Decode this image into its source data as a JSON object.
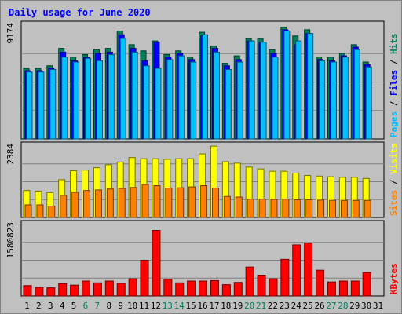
{
  "title": "Daily usage for June 2020",
  "colors": {
    "background": "#c0c0c0",
    "title": "#0000ff",
    "hits": "#00805c",
    "files": "#0000ff",
    "pages": "#00c0ff",
    "visits": "#ffff00",
    "sites": "#ff8000",
    "kbytes": "#ff0000",
    "weekend_label": "#00805c",
    "weekday_label": "#000000",
    "grid": "#808080"
  },
  "chart_data": [
    {
      "type": "bar",
      "panel": "hits-files-pages",
      "ymax_label": "9174",
      "ymax": 9174,
      "legend": [
        "Pages",
        "Files",
        "Hits"
      ],
      "categories": [
        "1",
        "2",
        "3",
        "4",
        "5",
        "6",
        "7",
        "8",
        "9",
        "10",
        "11",
        "12",
        "13",
        "14",
        "15",
        "16",
        "17",
        "18",
        "19",
        "20",
        "21",
        "22",
        "23",
        "24",
        "25",
        "26",
        "27",
        "28",
        "29",
        "30",
        "31"
      ],
      "series": [
        {
          "name": "Hits",
          "values": [
            5700,
            5700,
            5900,
            7300,
            6600,
            6800,
            7200,
            7300,
            8700,
            7600,
            7100,
            7900,
            6800,
            7100,
            6600,
            8600,
            7500,
            6100,
            6700,
            8100,
            8100,
            7200,
            9000,
            8300,
            8800,
            6600,
            6600,
            6900,
            7600,
            6200,
            null
          ]
        },
        {
          "name": "Files",
          "values": [
            5500,
            5500,
            5700,
            7000,
            6300,
            6600,
            6900,
            7000,
            8400,
            7300,
            6300,
            7800,
            6600,
            6900,
            6400,
            8300,
            7300,
            5900,
            6400,
            7900,
            7800,
            6900,
            8800,
            7600,
            8500,
            6400,
            6300,
            6700,
            7400,
            6000,
            null
          ]
        },
        {
          "name": "Pages",
          "values": [
            5400,
            5400,
            5600,
            6600,
            6200,
            6500,
            6300,
            6800,
            8100,
            7000,
            5900,
            5700,
            6400,
            6700,
            6200,
            8400,
            7000,
            5600,
            6200,
            7900,
            7800,
            6600,
            8700,
            7900,
            8500,
            6300,
            6200,
            6600,
            7200,
            5800,
            null
          ]
        }
      ]
    },
    {
      "type": "bar",
      "panel": "visits-sites",
      "ymax_label": "2384",
      "ymax": 2384,
      "legend": [
        "Sites",
        "Visits"
      ],
      "categories": [
        "1",
        "2",
        "3",
        "4",
        "5",
        "6",
        "7",
        "8",
        "9",
        "10",
        "11",
        "12",
        "13",
        "14",
        "15",
        "16",
        "17",
        "18",
        "19",
        "20",
        "21",
        "22",
        "23",
        "24",
        "25",
        "26",
        "27",
        "28",
        "29",
        "30",
        "31"
      ],
      "series": [
        {
          "name": "Visits",
          "values": [
            900,
            880,
            830,
            1260,
            1560,
            1580,
            1660,
            1760,
            1850,
            2000,
            1960,
            1960,
            1940,
            1960,
            1960,
            2120,
            2380,
            1860,
            1810,
            1680,
            1620,
            1540,
            1540,
            1480,
            1400,
            1380,
            1360,
            1340,
            1340,
            1300,
            null
          ]
        },
        {
          "name": "Sites",
          "values": [
            420,
            420,
            380,
            740,
            840,
            900,
            920,
            950,
            970,
            1000,
            1100,
            1060,
            980,
            990,
            1020,
            1060,
            980,
            700,
            680,
            610,
            610,
            600,
            610,
            590,
            590,
            580,
            570,
            570,
            570,
            570,
            null
          ]
        }
      ]
    },
    {
      "type": "bar",
      "panel": "kbytes",
      "ymax_label": "1580823",
      "ymax": 1580823,
      "legend": [
        "KBytes"
      ],
      "categories": [
        "1",
        "2",
        "3",
        "4",
        "5",
        "6",
        "7",
        "8",
        "9",
        "10",
        "11",
        "12",
        "13",
        "14",
        "15",
        "16",
        "17",
        "18",
        "19",
        "20",
        "21",
        "22",
        "23",
        "24",
        "25",
        "26",
        "27",
        "28",
        "29",
        "30",
        "31"
      ],
      "series": [
        {
          "name": "KBytes",
          "values": [
            230000,
            190000,
            180000,
            270000,
            240000,
            330000,
            290000,
            330000,
            280000,
            380000,
            790000,
            1450000,
            370000,
            290000,
            330000,
            330000,
            340000,
            250000,
            300000,
            640000,
            460000,
            380000,
            810000,
            1130000,
            1170000,
            570000,
            310000,
            330000,
            330000,
            520000,
            null
          ]
        }
      ]
    }
  ]
}
